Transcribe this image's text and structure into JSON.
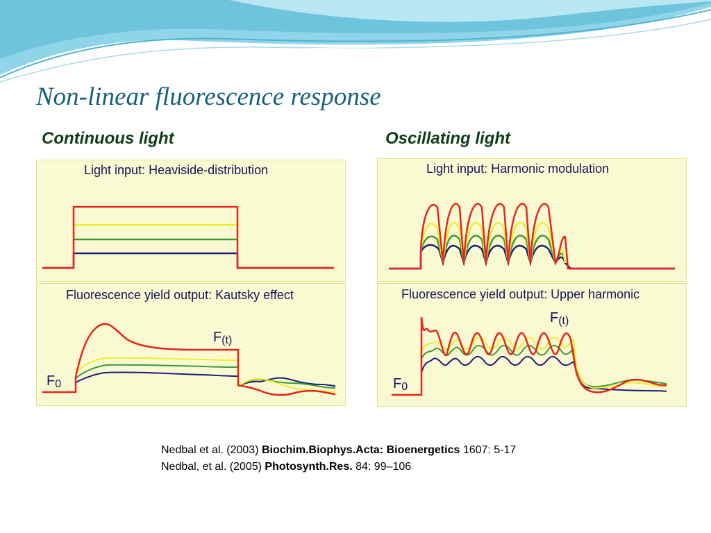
{
  "title": "Non-linear fluorescence response",
  "columns": {
    "left": "Continuous light",
    "right": "Oscillating light"
  },
  "panels": {
    "continuous_input": "Light input: Heaviside-distribution",
    "continuous_output": "Fluorescence yield output: Kautsky effect",
    "oscillating_input": "Light input: Harmonic modulation",
    "oscillating_output": "Fluorescence yield output: Upper harmonic"
  },
  "labels": {
    "ft_main": "F",
    "ft_sub": "(t)",
    "f0_main": "F",
    "f0_sub": "0"
  },
  "references": [
    {
      "pre": "Nedbal et al. (2003) ",
      "bold": "Biochim.Biophys.Acta: Bioenergetics",
      "post": " 1607: 5-17"
    },
    {
      "pre": "Nedbal, et al. (2005) ",
      "bold": "Photosynth.Res.",
      "post": " 84: 99–106"
    }
  ],
  "colors": {
    "red": "#e8241c",
    "yellow": "#f0ee2c",
    "green": "#3a9a3a",
    "navy": "#1c1c7a",
    "panel_bg": "#fafad2",
    "title": "#17607d"
  }
}
